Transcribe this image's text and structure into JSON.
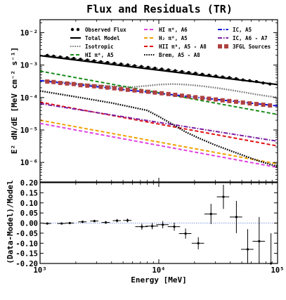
{
  "chart_data": [
    {
      "type": "line",
      "title": "Flux and Residuals (TR)",
      "xlabel": "Energy [MeV]",
      "ylabel": "E² dN/dE [MeV cm⁻² s⁻¹]",
      "xscale": "log",
      "yscale": "log",
      "xlim": [
        1000,
        100000
      ],
      "ylim": [
        2.5e-07,
        0.025
      ],
      "y_ticks": [
        {
          "value": 1e-06,
          "label": "10⁻⁶"
        },
        {
          "value": 1e-05,
          "label": "10⁻⁵"
        },
        {
          "value": 0.0001,
          "label": "10⁻⁴"
        },
        {
          "value": 0.001,
          "label": "10⁻³"
        },
        {
          "value": 0.01,
          "label": "10⁻²"
        }
      ],
      "legend_placement": "top, three columns",
      "series": [
        {
          "name": "Observed Flux",
          "style": "points",
          "color": "#000000",
          "x": [
            1150,
            1300,
            1480,
            1690,
            1920,
            2190,
            2500,
            2850,
            3250,
            3700,
            4220,
            4810,
            5480,
            6250,
            7130,
            8130,
            9270,
            10570,
            12050,
            13740,
            15660,
            17860,
            20360,
            23220,
            26470,
            30190,
            34420,
            39250,
            44750,
            51030,
            58190,
            66350,
            75650,
            86260
          ],
          "y": [
            0.00198,
            0.00188,
            0.00178,
            0.00168,
            0.0016,
            0.00151,
            0.00143,
            0.00135,
            0.00127,
            0.0012,
            0.00113,
            0.00107,
            0.00101,
            0.00095,
            0.0009,
            0.00085,
            0.0008,
            0.00075,
            0.00071,
            0.00067,
            0.00063,
            0.00059,
            0.00056,
            0.00052,
            0.00049,
            0.00046,
            0.00043,
            0.00041,
            0.00038,
            0.00035,
            0.00033,
            0.00031,
            0.00028,
            0.00026
          ]
        },
        {
          "name": "Total Model",
          "style": "solid",
          "color": "#000000",
          "x": [
            1000,
            100000
          ],
          "y": [
            0.00195,
            0.00025
          ]
        },
        {
          "name": "Isotropic",
          "style": "dotted",
          "color": "#7a7a7a",
          "x": [
            1000,
            2000,
            4000,
            6000,
            8000,
            10000,
            13000,
            17000,
            22000,
            30000,
            40000,
            55000,
            70000,
            100000
          ],
          "y": [
            0.00034,
            0.00027,
            0.00022,
            0.00021,
            0.00023,
            0.00025,
            0.00026,
            0.00025,
            0.00023,
            0.0002,
            0.00017,
            0.00014,
            0.00012,
            0.0001
          ]
        },
        {
          "name": "HI π⁰, A5",
          "style": "dashed",
          "color": "#1a8c1a",
          "x": [
            1000,
            100000
          ],
          "y": [
            0.00065,
            3e-05
          ]
        },
        {
          "name": "HI π⁰, A6",
          "style": "dashed",
          "color": "#e040e0",
          "x": [
            1000,
            100000
          ],
          "y": [
            1.6e-05,
            7e-07
          ]
        },
        {
          "name": "H₂ π⁰, A5",
          "style": "dashed",
          "color": "#f0a000",
          "x": [
            1000,
            100000
          ],
          "y": [
            2e-05,
            9e-07
          ]
        },
        {
          "name": "HII π⁰, A5 - A8",
          "style": "dashed",
          "color": "#e01010",
          "x": [
            1000,
            100000
          ],
          "y": [
            7.2e-05,
            3.2e-06
          ]
        },
        {
          "name": "Brem, A5 - A8",
          "style": "dotted",
          "color": "#000000",
          "x": [
            1000,
            2000,
            4000,
            6000,
            8000,
            10000,
            13000,
            17000,
            22000,
            30000,
            40000,
            55000,
            70000,
            100000
          ],
          "y": [
            0.00016,
            0.000105,
            6.8e-05,
            5e-05,
            4e-05,
            2.6e-05,
            1.5e-05,
            8.5e-06,
            5.5e-06,
            3.4e-06,
            2.3e-06,
            1.5e-06,
            1.1e-06,
            7.5e-07
          ]
        },
        {
          "name": "IC, A5",
          "style": "dashdot",
          "color": "#1010e0",
          "x": [
            1000,
            100000
          ],
          "y": [
            0.00033,
            5.5e-05
          ]
        },
        {
          "name": "IC, A6 - A7",
          "style": "dashdot",
          "color": "#7b1fa2",
          "x": [
            1000,
            100000
          ],
          "y": [
            6.5e-05,
            4.5e-06
          ]
        },
        {
          "name": "3FGL Sources",
          "style": "squares",
          "color": "#b04040",
          "x": [
            1150,
            1300,
            1480,
            1690,
            1920,
            2190,
            2500,
            2850,
            3250,
            3700,
            4220,
            4810,
            5480,
            6250,
            7130,
            8130,
            9270,
            10570,
            12050,
            13740,
            15660,
            17860,
            20360,
            23220,
            26470,
            30190,
            34420,
            39250,
            44750,
            51030,
            58190,
            66350,
            75650,
            86260
          ],
          "y": [
            0.00031,
            0.0003,
            0.00028,
            0.00027,
            0.00026,
            0.00024,
            0.000232,
            0.000222,
            0.000212,
            0.000202,
            0.000192,
            0.000182,
            0.000173,
            0.000165,
            0.000157,
            0.00015,
            0.000142,
            0.000135,
            0.000128,
            0.000121,
            0.000114,
            0.000108,
            0.000102,
            9.7e-05,
            9.2e-05,
            8.7e-05,
            8.2e-05,
            7.8e-05,
            7.4e-05,
            7e-05,
            6.6e-05,
            6.3e-05,
            6e-05,
            5.7e-05
          ]
        }
      ]
    },
    {
      "type": "scatter",
      "xlabel": "Energy [MeV]",
      "ylabel": "(Data-Model)/Model",
      "xscale": "log",
      "xlim": [
        1000,
        100000
      ],
      "ylim": [
        -0.2,
        0.2
      ],
      "y_ticks": [
        -0.2,
        -0.15,
        -0.1,
        -0.05,
        0.0,
        0.05,
        0.1,
        0.15,
        0.2
      ],
      "x_ticks": [
        {
          "value": 1000,
          "label": "10³"
        },
        {
          "value": 10000,
          "label": "10⁴"
        },
        {
          "value": 100000,
          "label": "10⁵"
        }
      ],
      "reference_line": 0.0,
      "points": [
        {
          "x": 1150,
          "y": -0.002,
          "yerr": 0.004
        },
        {
          "x": 1520,
          "y": -0.002,
          "yerr": 0.004
        },
        {
          "x": 1780,
          "y": 0.0,
          "yerr": 0.004
        },
        {
          "x": 2280,
          "y": 0.006,
          "yerr": 0.005
        },
        {
          "x": 2870,
          "y": 0.01,
          "yerr": 0.006
        },
        {
          "x": 3580,
          "y": 0.003,
          "yerr": 0.007
        },
        {
          "x": 4450,
          "y": 0.012,
          "yerr": 0.008
        },
        {
          "x": 5450,
          "y": 0.013,
          "yerr": 0.009
        },
        {
          "x": 7200,
          "y": -0.018,
          "yerr": 0.015
        },
        {
          "x": 8800,
          "y": -0.015,
          "yerr": 0.016
        },
        {
          "x": 10800,
          "y": -0.008,
          "yerr": 0.018
        },
        {
          "x": 13500,
          "y": -0.018,
          "yerr": 0.02
        },
        {
          "x": 16800,
          "y": -0.052,
          "yerr": 0.025
        },
        {
          "x": 21500,
          "y": -0.1,
          "yerr": 0.03
        },
        {
          "x": 27500,
          "y": 0.045,
          "yerr": 0.05
        },
        {
          "x": 35000,
          "y": 0.13,
          "yerr": 0.06
        },
        {
          "x": 45000,
          "y": 0.03,
          "yerr": 0.08
        },
        {
          "x": 56000,
          "y": -0.13,
          "yerr": 0.1
        },
        {
          "x": 70000,
          "y": -0.09,
          "yerr": 0.12
        },
        {
          "x": 88000,
          "y": -0.2,
          "yerr": 0.15
        }
      ]
    }
  ]
}
